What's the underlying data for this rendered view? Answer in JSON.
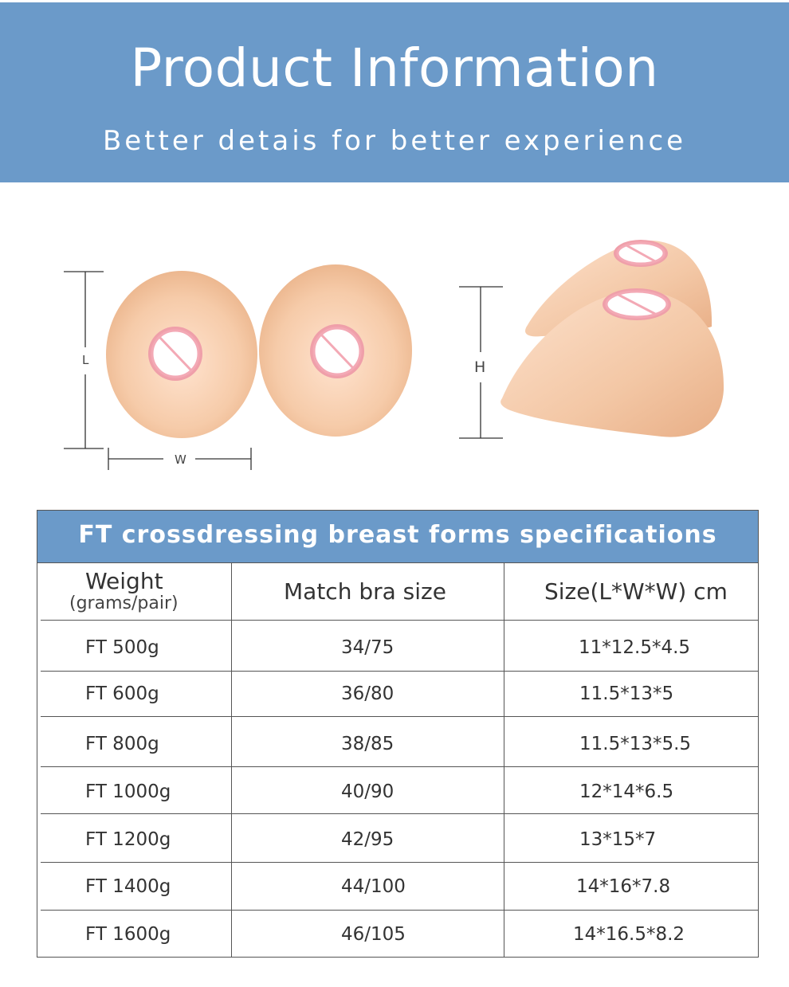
{
  "banner": {
    "title": "Product Information",
    "subtitle": "Better detais for better experience",
    "color": "#6b9ac9"
  },
  "figure": {
    "label_length": "L",
    "label_width": "W",
    "label_height": "H"
  },
  "table": {
    "title": "FT crossdressing breast forms specifications",
    "columns": [
      {
        "label": "Weight",
        "sublabel": "(grams/pair)"
      },
      {
        "label": "Match bra size"
      },
      {
        "label": "Size(L*W*W) cm"
      }
    ],
    "rows": [
      {
        "weight": "FT 500g",
        "bra": "34/75",
        "size": "11*12.5*4.5"
      },
      {
        "weight": "FT 600g",
        "bra": "36/80",
        "size": "11.5*13*5"
      },
      {
        "weight": "FT 800g",
        "bra": "38/85",
        "size": "11.5*13*5.5"
      },
      {
        "weight": "FT 1000g",
        "bra": "40/90",
        "size": "12*14*6.5"
      },
      {
        "weight": "FT 1200g",
        "bra": "42/95",
        "size": "13*15*7"
      },
      {
        "weight": "FT 1400g",
        "bra": "44/100",
        "size": "14*16*7.8"
      },
      {
        "weight": "FT 1600g",
        "bra": "46/105",
        "size": "14*16.5*8.2"
      }
    ]
  }
}
